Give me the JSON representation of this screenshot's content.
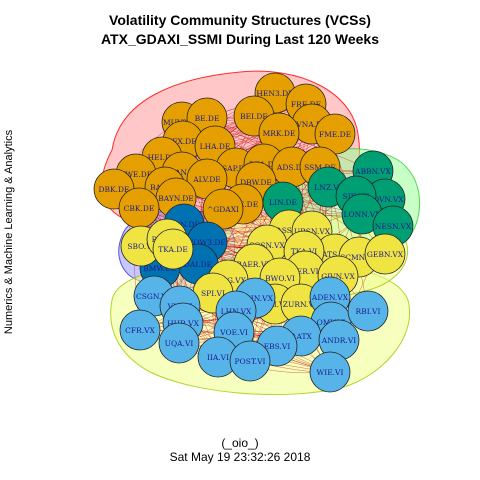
{
  "title_line1": "Volatility Community Structures (VCSs)",
  "title_line2": "ATX_GDAXI_SSMI During Last 120 Weeks",
  "side_label": "Numerics & Machine Learning & Analytics",
  "caption_line1": "(_oio_)",
  "caption_line2": "Sat May 19 23:32:26 2018",
  "colors": {
    "orange": "#E69F00",
    "green": "#009E73",
    "blue_dark": "#0072B2",
    "blue_light": "#56B4E9",
    "yellow": "#F0E442",
    "hull_red": "#FF9999",
    "hull_green": "#99FF99",
    "hull_yellow": "#EEFF88",
    "hull_blue": "#9999FF",
    "edge": "#CC0000"
  },
  "nodes": [
    {
      "label": "HEN3.DE",
      "group": "orange"
    },
    {
      "label": "FRE.DE",
      "group": "orange"
    },
    {
      "label": "BEI.DE",
      "group": "orange"
    },
    {
      "label": "VNA.DE",
      "group": "orange"
    },
    {
      "label": "MUV2.DE",
      "group": "orange"
    },
    {
      "label": "BE.DE",
      "group": "orange"
    },
    {
      "label": "MRK.DE",
      "group": "orange"
    },
    {
      "label": "FME.DE",
      "group": "orange"
    },
    {
      "label": "IFX.DE",
      "group": "orange"
    },
    {
      "label": "LHA.DE",
      "group": "orange"
    },
    {
      "label": "HEI.DE",
      "group": "orange"
    },
    {
      "label": "RWE.DE",
      "group": "orange"
    },
    {
      "label": "EOAN.DE",
      "group": "orange"
    },
    {
      "label": "SAP.DE",
      "group": "orange"
    },
    {
      "label": "DB1.DE",
      "group": "orange"
    },
    {
      "label": "ADS.DE",
      "group": "orange"
    },
    {
      "label": "SSM.DE",
      "group": "orange"
    },
    {
      "label": "DBK.DE",
      "group": "orange"
    },
    {
      "label": "BAS.DE",
      "group": "orange"
    },
    {
      "label": "ALV.DE",
      "group": "orange"
    },
    {
      "label": "DBW.DE",
      "group": "orange"
    },
    {
      "label": "BAYN.DE",
      "group": "orange"
    },
    {
      "label": "CBK.DE",
      "group": "orange"
    },
    {
      "label": "DTE.DE",
      "group": "orange"
    },
    {
      "label": "^GDAXI",
      "group": "orange"
    },
    {
      "label": "ABBN.VX",
      "group": "green"
    },
    {
      "label": "LNZ.VI",
      "group": "green"
    },
    {
      "label": "NOVN.VX",
      "group": "green"
    },
    {
      "label": "SIK.VX",
      "group": "green"
    },
    {
      "label": "LONN.VX",
      "group": "green"
    },
    {
      "label": "NESN.VX",
      "group": "green"
    },
    {
      "label": "LIN.DE",
      "group": "green"
    },
    {
      "label": "CON.DE",
      "group": "blue_dark"
    },
    {
      "label": "VOW3.DE",
      "group": "blue_dark"
    },
    {
      "label": "DAI.DE",
      "group": "blue_dark"
    },
    {
      "label": "BMW.DE",
      "group": "blue_dark"
    },
    {
      "label": "SBO.VI",
      "group": "yellow"
    },
    {
      "label": "ROG.VX",
      "group": "yellow"
    },
    {
      "label": "TKA.DE",
      "group": "yellow"
    },
    {
      "label": "^SSMI",
      "group": "yellow"
    },
    {
      "label": "UBSN.VX",
      "group": "yellow"
    },
    {
      "label": "SGSN.VX",
      "group": "yellow"
    },
    {
      "label": "ATS.VI",
      "group": "yellow"
    },
    {
      "label": "SCMN.VX",
      "group": "yellow"
    },
    {
      "label": "GEBN.VX",
      "group": "yellow"
    },
    {
      "label": "TKA.VI",
      "group": "yellow"
    },
    {
      "label": "BAER.VX",
      "group": "yellow"
    },
    {
      "label": "VER.VI",
      "group": "yellow"
    },
    {
      "label": "GIVN.VX",
      "group": "yellow"
    },
    {
      "label": "UBSG.VX",
      "group": "yellow"
    },
    {
      "label": "BWO.VI",
      "group": "yellow"
    },
    {
      "label": "SPI.VI",
      "group": "yellow"
    },
    {
      "label": "CAI.VI",
      "group": "yellow"
    },
    {
      "label": "ZURN.VX",
      "group": "yellow"
    },
    {
      "label": "CSGN.VX",
      "group": "blue_light"
    },
    {
      "label": "SLHN.VX",
      "group": "blue_light"
    },
    {
      "label": "ADEN.VX",
      "group": "blue_light"
    },
    {
      "label": "VIG.VI",
      "group": "blue_light"
    },
    {
      "label": "LHN.VX",
      "group": "blue_light"
    },
    {
      "label": "CFR.VX",
      "group": "blue_light"
    },
    {
      "label": "HHR.VX",
      "group": "blue_light"
    },
    {
      "label": "VOE.VI",
      "group": "blue_light"
    },
    {
      "label": "OMV.VI",
      "group": "blue_light"
    },
    {
      "label": "RBI.VI",
      "group": "blue_light"
    },
    {
      "label": "^ATX",
      "group": "blue_light"
    },
    {
      "label": "UQA.VI",
      "group": "blue_light"
    },
    {
      "label": "EBS.VI",
      "group": "blue_light"
    },
    {
      "label": "ANDR.VI",
      "group": "blue_light"
    },
    {
      "label": "IIA.VI",
      "group": "blue_light"
    },
    {
      "label": "POST.VI",
      "group": "blue_light"
    },
    {
      "label": "WIE.VI",
      "group": "blue_light"
    }
  ]
}
